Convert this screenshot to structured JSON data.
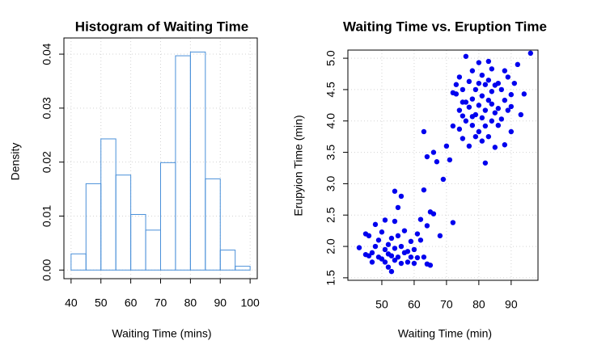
{
  "chart_data": [
    {
      "type": "histogram",
      "title": "Histogram of Waiting Time",
      "x_label": "Waiting Time (mins)",
      "y_label": "Density",
      "bins": [
        40,
        45,
        50,
        55,
        60,
        65,
        70,
        75,
        80,
        85,
        90,
        95,
        100
      ],
      "values": [
        0.003,
        0.016,
        0.0243,
        0.0176,
        0.0103,
        0.0074,
        0.0199,
        0.0397,
        0.0404,
        0.0169,
        0.0037,
        0.0007
      ],
      "color": "#4a90d9",
      "xlim": [
        37.6,
        102.4
      ],
      "ylim": [
        -0.0016,
        0.043
      ],
      "xticks": [
        40,
        50,
        60,
        70,
        80,
        90,
        100
      ],
      "yticks": [
        {
          "value": 0,
          "label": "0.00"
        },
        0.01,
        0.02,
        0.03,
        0.04
      ],
      "grid": true
    },
    {
      "type": "scatter",
      "title": "Waiting Time vs. Eruption Time",
      "x_label": "Waiting Time (min)",
      "y_label": "Erupyion Time (min)",
      "x": [
        43,
        45,
        45,
        46,
        46,
        47,
        47,
        48,
        48,
        49,
        49,
        50,
        50,
        51,
        51,
        51,
        52,
        52,
        52,
        53,
        53,
        53,
        54,
        54,
        54,
        55,
        55,
        55,
        56,
        56,
        57,
        57,
        58,
        58,
        59,
        59,
        60,
        60,
        61,
        61,
        62,
        63,
        64,
        65,
        64,
        62,
        66,
        68,
        65,
        54,
        56,
        63,
        72,
        63,
        64,
        66,
        69,
        67,
        70,
        72,
        73,
        73,
        74,
        74,
        74,
        75,
        75,
        75,
        76,
        76,
        76,
        77,
        77,
        77,
        78,
        78,
        78,
        79,
        79,
        79,
        80,
        80,
        80,
        80,
        81,
        81,
        81,
        81,
        82,
        82,
        82,
        82,
        83,
        83,
        83,
        83,
        84,
        84,
        84,
        85,
        85,
        85,
        86,
        86,
        87,
        87,
        88,
        88,
        88,
        89,
        89,
        90,
        90,
        91,
        92,
        93,
        94,
        96,
        90,
        86,
        78,
        84,
        72,
        71,
        75
      ],
      "values": [
        1.98,
        1.87,
        2.2,
        1.85,
        2.17,
        1.75,
        1.9,
        2.0,
        2.35,
        1.83,
        2.1,
        1.8,
        2.23,
        1.75,
        1.95,
        2.42,
        1.67,
        1.88,
        2.03,
        1.6,
        1.85,
        2.13,
        1.78,
        1.97,
        2.4,
        1.83,
        2.17,
        2.62,
        1.73,
        2.0,
        1.9,
        2.25,
        1.75,
        1.92,
        1.83,
        2.08,
        1.73,
        1.95,
        1.82,
        2.2,
        2.1,
        1.83,
        1.72,
        1.7,
        2.33,
        2.43,
        2.52,
        2.17,
        2.55,
        2.88,
        2.8,
        2.9,
        2.38,
        3.83,
        3.43,
        3.5,
        3.07,
        3.35,
        3.6,
        3.92,
        4.43,
        4.58,
        3.87,
        4.17,
        4.7,
        3.72,
        4.08,
        4.5,
        4.0,
        4.3,
        5.03,
        3.6,
        4.22,
        4.63,
        3.93,
        4.35,
        4.8,
        3.75,
        4.1,
        4.5,
        3.83,
        4.25,
        4.6,
        4.93,
        3.68,
        4.05,
        4.4,
        4.73,
        3.33,
        3.92,
        4.17,
        4.58,
        3.75,
        4.33,
        4.65,
        4.95,
        4.0,
        4.47,
        4.83,
        3.58,
        4.13,
        4.57,
        4.2,
        4.6,
        4.03,
        4.5,
        3.62,
        4.33,
        4.8,
        4.17,
        4.7,
        3.83,
        4.42,
        4.6,
        4.9,
        4.1,
        4.43,
        5.08,
        4.23,
        3.93,
        4.07,
        4.27,
        4.45,
        3.38,
        4.3
      ],
      "color": "#0000ee",
      "xlim": [
        39.5,
        98.3
      ],
      "ylim": [
        1.46,
        5.13
      ],
      "xticks": [
        50,
        60,
        70,
        80,
        90
      ],
      "yticks": [
        1.5,
        {
          "value": 2,
          "label": "2.0"
        },
        2.5,
        {
          "value": 3,
          "label": "3.0"
        },
        3.5,
        {
          "value": 4,
          "label": "4.0"
        },
        4.5,
        {
          "value": 5,
          "label": "5.0"
        }
      ],
      "grid": true
    }
  ]
}
